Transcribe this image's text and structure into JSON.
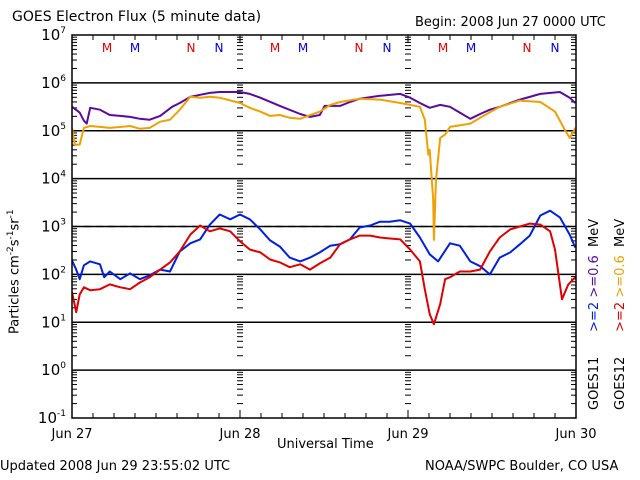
{
  "header": {
    "title": "GOES Electron Flux (5 minute data)",
    "begin": "Begin: 2008 Jun 27 0000 UTC"
  },
  "footer": {
    "updated": "Updated 2008 Jun 29 23:55:02 UTC",
    "credit": "NOAA/SWPC Boulder, CO USA"
  },
  "legend": {
    "goes11": {
      "label": "GOES11",
      "e2": ">=2",
      "e06": ">=0.6",
      "unit": "MeV"
    },
    "goes12": {
      "label": "GOES12",
      "e2": ">=2",
      "e06": ">=0.6",
      "unit": "MeV"
    }
  },
  "chart_data": {
    "type": "line",
    "title": "GOES Electron Flux (5 minute data)",
    "xlabel": "Universal Time",
    "ylabel_parts": {
      "base": "Particles cm",
      "e1": "-2",
      "s": "s",
      "e2": "-1",
      "sr": "sr",
      "e3": "-1"
    },
    "y_scale": "log",
    "ylim_exponents": [
      -1,
      7
    ],
    "y_ticks": [
      {
        "exp": 7,
        "label": "10",
        "sup": "7"
      },
      {
        "exp": 6,
        "label": "10",
        "sup": "6"
      },
      {
        "exp": 5,
        "label": "10",
        "sup": "5"
      },
      {
        "exp": 4,
        "label": "10",
        "sup": "4"
      },
      {
        "exp": 3,
        "label": "10",
        "sup": "3"
      },
      {
        "exp": 2,
        "label": "10",
        "sup": "2"
      },
      {
        "exp": 1,
        "label": "10",
        "sup": "1"
      },
      {
        "exp": 0,
        "label": "10",
        "sup": "0"
      },
      {
        "exp": -1,
        "label": "10",
        "sup": "-1"
      }
    ],
    "x_unit": "hours since 2008 Jun 27 0000 UTC",
    "xlim": [
      0,
      72
    ],
    "x_ticks": [
      {
        "hour": 0,
        "label": "Jun 27"
      },
      {
        "hour": 24,
        "label": "Jun 28"
      },
      {
        "hour": 48,
        "label": "Jun 29"
      },
      {
        "hour": 72,
        "label": "Jun 30"
      }
    ],
    "threshold_line": {
      "value": 1000,
      "style": "dashed"
    },
    "markers": [
      {
        "hour": 5.0,
        "label": "M",
        "color": "#e00000"
      },
      {
        "hour": 9.0,
        "label": "M",
        "color": "#0000e0"
      },
      {
        "hour": 17.0,
        "label": "N",
        "color": "#e00000"
      },
      {
        "hour": 21.0,
        "label": "N",
        "color": "#0000e0"
      },
      {
        "hour": 29.0,
        "label": "M",
        "color": "#e00000"
      },
      {
        "hour": 33.0,
        "label": "M",
        "color": "#0000e0"
      },
      {
        "hour": 41.0,
        "label": "N",
        "color": "#e00000"
      },
      {
        "hour": 45.0,
        "label": "N",
        "color": "#0000e0"
      },
      {
        "hour": 53.0,
        "label": "M",
        "color": "#e00000"
      },
      {
        "hour": 57.0,
        "label": "M",
        "color": "#0000e0"
      },
      {
        "hour": 65.0,
        "label": "N",
        "color": "#e00000"
      },
      {
        "hour": 69.0,
        "label": "N",
        "color": "#0000e0"
      }
    ],
    "series": [
      {
        "name": "GOES11 >=0.6 MeV",
        "color": "#5a0aa0",
        "log10_flux": [
          [
            0,
            5.5
          ],
          [
            1.1,
            5.38
          ],
          [
            1.7,
            5.21
          ],
          [
            2.1,
            5.15
          ],
          [
            2.6,
            5.48
          ],
          [
            4.0,
            5.44
          ],
          [
            5.4,
            5.33
          ],
          [
            6.9,
            5.31
          ],
          [
            8.3,
            5.29
          ],
          [
            9.7,
            5.25
          ],
          [
            11.1,
            5.23
          ],
          [
            12.6,
            5.31
          ],
          [
            14.3,
            5.5
          ],
          [
            15.4,
            5.58
          ],
          [
            16.9,
            5.71
          ],
          [
            18.3,
            5.75
          ],
          [
            19.7,
            5.79
          ],
          [
            21.1,
            5.81
          ],
          [
            24.0,
            5.81
          ],
          [
            25.4,
            5.77
          ],
          [
            26.9,
            5.69
          ],
          [
            29.7,
            5.52
          ],
          [
            32.6,
            5.35
          ],
          [
            34.0,
            5.29
          ],
          [
            35.4,
            5.33
          ],
          [
            36.1,
            5.52
          ],
          [
            38.3,
            5.52
          ],
          [
            39.7,
            5.6
          ],
          [
            41.1,
            5.67
          ],
          [
            44.0,
            5.73
          ],
          [
            46.9,
            5.77
          ],
          [
            48.3,
            5.69
          ],
          [
            49.7,
            5.58
          ],
          [
            51.1,
            5.48
          ],
          [
            52.6,
            5.54
          ],
          [
            54.0,
            5.5
          ],
          [
            55.4,
            5.38
          ],
          [
            56.9,
            5.25
          ],
          [
            58.3,
            5.35
          ],
          [
            59.7,
            5.44
          ],
          [
            61.1,
            5.5
          ],
          [
            64.0,
            5.65
          ],
          [
            66.9,
            5.77
          ],
          [
            69.7,
            5.81
          ],
          [
            71.1,
            5.69
          ],
          [
            71.9,
            5.58
          ]
        ]
      },
      {
        "name": "GOES12 >=0.6 MeV",
        "color": "#f0a000",
        "log10_flux": [
          [
            0,
            5.06
          ],
          [
            0.4,
            4.71
          ],
          [
            1.1,
            4.71
          ],
          [
            1.7,
            5.06
          ],
          [
            2.6,
            5.1
          ],
          [
            4.0,
            5.08
          ],
          [
            5.4,
            5.06
          ],
          [
            8.3,
            5.1
          ],
          [
            9.7,
            5.04
          ],
          [
            11.1,
            5.06
          ],
          [
            12.6,
            5.19
          ],
          [
            14.0,
            5.23
          ],
          [
            15.4,
            5.44
          ],
          [
            16.9,
            5.71
          ],
          [
            18.3,
            5.69
          ],
          [
            19.7,
            5.71
          ],
          [
            21.1,
            5.69
          ],
          [
            24.0,
            5.58
          ],
          [
            25.4,
            5.48
          ],
          [
            26.9,
            5.4
          ],
          [
            28.3,
            5.31
          ],
          [
            29.7,
            5.33
          ],
          [
            31.1,
            5.27
          ],
          [
            32.6,
            5.25
          ],
          [
            35.4,
            5.4
          ],
          [
            36.9,
            5.54
          ],
          [
            38.3,
            5.6
          ],
          [
            41.1,
            5.67
          ],
          [
            44.0,
            5.65
          ],
          [
            46.9,
            5.58
          ],
          [
            48.3,
            5.54
          ],
          [
            49.7,
            5.5
          ],
          [
            50.4,
            5.23
          ],
          [
            50.9,
            4.5
          ],
          [
            51.1,
            4.6
          ],
          [
            51.6,
            3.56
          ],
          [
            51.7,
            2.72
          ],
          [
            52.0,
            3.98
          ],
          [
            52.6,
            4.85
          ],
          [
            53.3,
            4.92
          ],
          [
            54.0,
            5.08
          ],
          [
            56.9,
            5.15
          ],
          [
            58.3,
            5.27
          ],
          [
            61.1,
            5.5
          ],
          [
            64.0,
            5.63
          ],
          [
            66.9,
            5.6
          ],
          [
            69.0,
            5.4
          ],
          [
            70.4,
            5.02
          ],
          [
            71.1,
            4.85
          ],
          [
            71.9,
            5.06
          ]
        ]
      },
      {
        "name": "GOES11 >=2 MeV",
        "color": "#0020e0",
        "log10_flux": [
          [
            0,
            2.29
          ],
          [
            0.6,
            2.1
          ],
          [
            1.1,
            1.9
          ],
          [
            1.7,
            2.19
          ],
          [
            2.6,
            2.27
          ],
          [
            4.0,
            2.21
          ],
          [
            4.6,
            1.94
          ],
          [
            5.4,
            2.06
          ],
          [
            6.9,
            1.9
          ],
          [
            8.3,
            2.02
          ],
          [
            9.7,
            1.9
          ],
          [
            11.1,
            1.98
          ],
          [
            12.6,
            2.1
          ],
          [
            14.0,
            2.06
          ],
          [
            15.4,
            2.48
          ],
          [
            16.9,
            2.65
          ],
          [
            18.3,
            2.73
          ],
          [
            19.7,
            3.04
          ],
          [
            21.1,
            3.25
          ],
          [
            22.6,
            3.15
          ],
          [
            24.0,
            3.25
          ],
          [
            25.4,
            3.15
          ],
          [
            26.9,
            2.94
          ],
          [
            28.3,
            2.71
          ],
          [
            29.7,
            2.58
          ],
          [
            31.1,
            2.35
          ],
          [
            32.6,
            2.27
          ],
          [
            34.0,
            2.35
          ],
          [
            35.4,
            2.46
          ],
          [
            36.9,
            2.6
          ],
          [
            38.3,
            2.63
          ],
          [
            39.7,
            2.73
          ],
          [
            41.1,
            2.98
          ],
          [
            42.6,
            3.02
          ],
          [
            44.0,
            3.1
          ],
          [
            45.4,
            3.1
          ],
          [
            46.9,
            3.13
          ],
          [
            48.3,
            3.06
          ],
          [
            49.7,
            2.77
          ],
          [
            51.1,
            2.42
          ],
          [
            52.3,
            2.27
          ],
          [
            54.0,
            2.65
          ],
          [
            55.4,
            2.6
          ],
          [
            56.9,
            2.27
          ],
          [
            58.3,
            2.17
          ],
          [
            59.7,
            2.0
          ],
          [
            61.1,
            2.35
          ],
          [
            62.6,
            2.46
          ],
          [
            64.0,
            2.63
          ],
          [
            65.4,
            2.81
          ],
          [
            66.9,
            3.23
          ],
          [
            68.3,
            3.33
          ],
          [
            69.7,
            3.19
          ],
          [
            71.1,
            2.83
          ],
          [
            71.9,
            2.56
          ]
        ]
      },
      {
        "name": "GOES12 >=2 MeV",
        "color": "#e00000",
        "log10_flux": [
          [
            0,
            1.63
          ],
          [
            0.6,
            1.21
          ],
          [
            1.1,
            1.58
          ],
          [
            1.7,
            1.73
          ],
          [
            2.6,
            1.67
          ],
          [
            4.0,
            1.69
          ],
          [
            5.4,
            1.79
          ],
          [
            6.9,
            1.73
          ],
          [
            8.3,
            1.69
          ],
          [
            9.7,
            1.83
          ],
          [
            11.1,
            1.94
          ],
          [
            12.6,
            2.1
          ],
          [
            14.0,
            2.25
          ],
          [
            15.4,
            2.48
          ],
          [
            16.9,
            2.83
          ],
          [
            18.3,
            3.02
          ],
          [
            19.7,
            2.9
          ],
          [
            21.1,
            2.96
          ],
          [
            22.6,
            2.9
          ],
          [
            24.0,
            2.69
          ],
          [
            25.4,
            2.52
          ],
          [
            26.9,
            2.46
          ],
          [
            28.3,
            2.31
          ],
          [
            29.7,
            2.25
          ],
          [
            31.1,
            2.15
          ],
          [
            32.6,
            2.21
          ],
          [
            34.0,
            2.1
          ],
          [
            35.4,
            2.23
          ],
          [
            36.9,
            2.35
          ],
          [
            38.3,
            2.63
          ],
          [
            39.7,
            2.73
          ],
          [
            41.1,
            2.81
          ],
          [
            42.6,
            2.81
          ],
          [
            44.0,
            2.77
          ],
          [
            45.4,
            2.75
          ],
          [
            46.9,
            2.73
          ],
          [
            48.3,
            2.52
          ],
          [
            49.7,
            2.27
          ],
          [
            50.4,
            1.69
          ],
          [
            51.1,
            1.17
          ],
          [
            51.7,
            0.96
          ],
          [
            52.6,
            1.38
          ],
          [
            53.3,
            1.9
          ],
          [
            54.0,
            1.94
          ],
          [
            55.4,
            2.06
          ],
          [
            56.9,
            2.06
          ],
          [
            58.3,
            2.1
          ],
          [
            59.7,
            2.48
          ],
          [
            61.1,
            2.77
          ],
          [
            62.6,
            2.94
          ],
          [
            64.0,
            3.0
          ],
          [
            65.4,
            3.06
          ],
          [
            66.9,
            3.04
          ],
          [
            68.3,
            2.9
          ],
          [
            69.0,
            2.52
          ],
          [
            70.0,
            1.48
          ],
          [
            70.9,
            1.79
          ],
          [
            71.9,
            1.94
          ]
        ]
      }
    ]
  }
}
